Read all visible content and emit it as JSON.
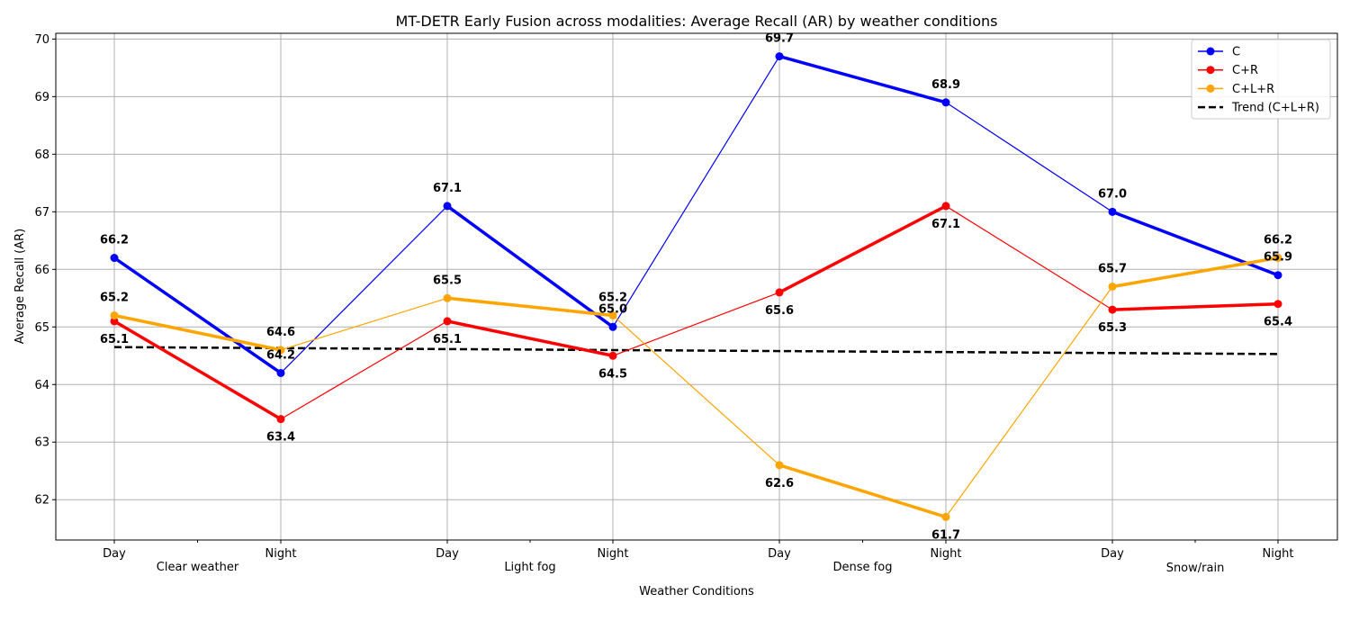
{
  "chart_data": {
    "type": "line",
    "title": "MT-DETR Early Fusion across modalities: Average Recall (AR) by weather conditions",
    "xlabel": "Weather Conditions",
    "ylabel": "Average Recall (AR)",
    "ylim": [
      61.3,
      70.1
    ],
    "yticks": [
      "62",
      "63",
      "64",
      "65",
      "66",
      "67",
      "68",
      "69",
      "70"
    ],
    "ytick_values": [
      62,
      63,
      64,
      65,
      66,
      67,
      68,
      69,
      70
    ],
    "grid": true,
    "legend_position": "upper right",
    "categories": [
      "Day",
      "Night",
      "Day",
      "Night",
      "Day",
      "Night",
      "Day",
      "Night"
    ],
    "groups": [
      "Clear weather",
      "Light fog",
      "Dense fog",
      "Snow/rain"
    ],
    "series": [
      {
        "name": "C",
        "color": "#0000ff",
        "values": [
          66.2,
          64.2,
          67.1,
          65.0,
          69.7,
          68.9,
          67.0,
          65.9
        ],
        "labels": [
          "66.2",
          "64.2",
          "67.1",
          "65.0",
          "69.7",
          "68.9",
          "67.0",
          "65.9"
        ]
      },
      {
        "name": "C+R",
        "color": "#ff0000",
        "values": [
          65.1,
          63.4,
          65.1,
          64.5,
          65.6,
          67.1,
          65.3,
          65.4
        ],
        "labels": [
          "65.1",
          "63.4",
          "65.1",
          "64.5",
          "65.6",
          "67.1",
          "65.3",
          "65.4"
        ]
      },
      {
        "name": "C+L+R",
        "color": "#ffa500",
        "values": [
          65.2,
          64.6,
          65.5,
          65.2,
          62.6,
          61.7,
          65.7,
          66.2
        ],
        "labels": [
          "65.2",
          "64.6",
          "65.5",
          "65.2",
          "62.6",
          "61.7",
          "65.7",
          "66.2"
        ]
      }
    ],
    "trend": {
      "name": "Trend (C+L+R)",
      "color": "#000000",
      "start": 64.65,
      "end": 64.53
    }
  }
}
